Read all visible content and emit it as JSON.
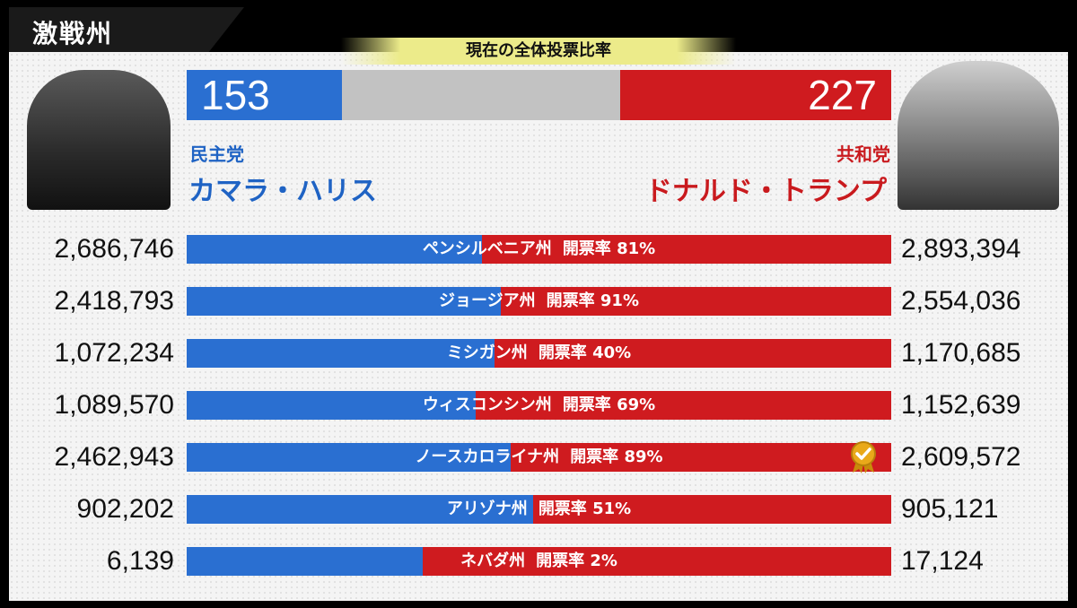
{
  "header": {
    "tag": "激戦州",
    "title": "現在の全体投票比率"
  },
  "totals": {
    "dem": "153",
    "rep": "227",
    "dem_share": 0.22,
    "rep_share": 0.385
  },
  "democrat": {
    "party": "民主党",
    "name": "カマラ・ハリス"
  },
  "republican": {
    "party": "共和党",
    "name": "ドナルド・トランプ"
  },
  "states": [
    {
      "name": "ペンシルベニア州",
      "counted": "開票率 81%",
      "dem": "2,686,746",
      "rep": "2,893,394",
      "dem_share": 0.419,
      "winner": false
    },
    {
      "name": "ジョージア州",
      "counted": "開票率 91%",
      "dem": "2,418,793",
      "rep": "2,554,036",
      "dem_share": 0.446,
      "winner": false
    },
    {
      "name": "ミシガン州",
      "counted": "開票率 40%",
      "dem": "1,072,234",
      "rep": "1,170,685",
      "dem_share": 0.437,
      "winner": false
    },
    {
      "name": "ウィスコンシン州",
      "counted": "開票率 69%",
      "dem": "1,089,570",
      "rep": "1,152,639",
      "dem_share": 0.41,
      "winner": false
    },
    {
      "name": "ノースカロライナ州",
      "counted": "開票率 89%",
      "dem": "2,462,943",
      "rep": "2,609,572",
      "dem_share": 0.46,
      "winner": true
    },
    {
      "name": "アリゾナ州",
      "counted": "開票率 51%",
      "dem": "902,202",
      "rep": "905,121",
      "dem_share": 0.492,
      "winner": false
    },
    {
      "name": "ネバダ州",
      "counted": "開票率 2%",
      "dem": "6,139",
      "rep": "17,124",
      "dem_share": 0.335,
      "winner": false
    }
  ],
  "colors": {
    "dem": "#2a6fd1",
    "rep": "#cf1b1f",
    "neutral": "#c2c2c2"
  },
  "icons": {
    "winner": "gold-medal-check-icon"
  }
}
